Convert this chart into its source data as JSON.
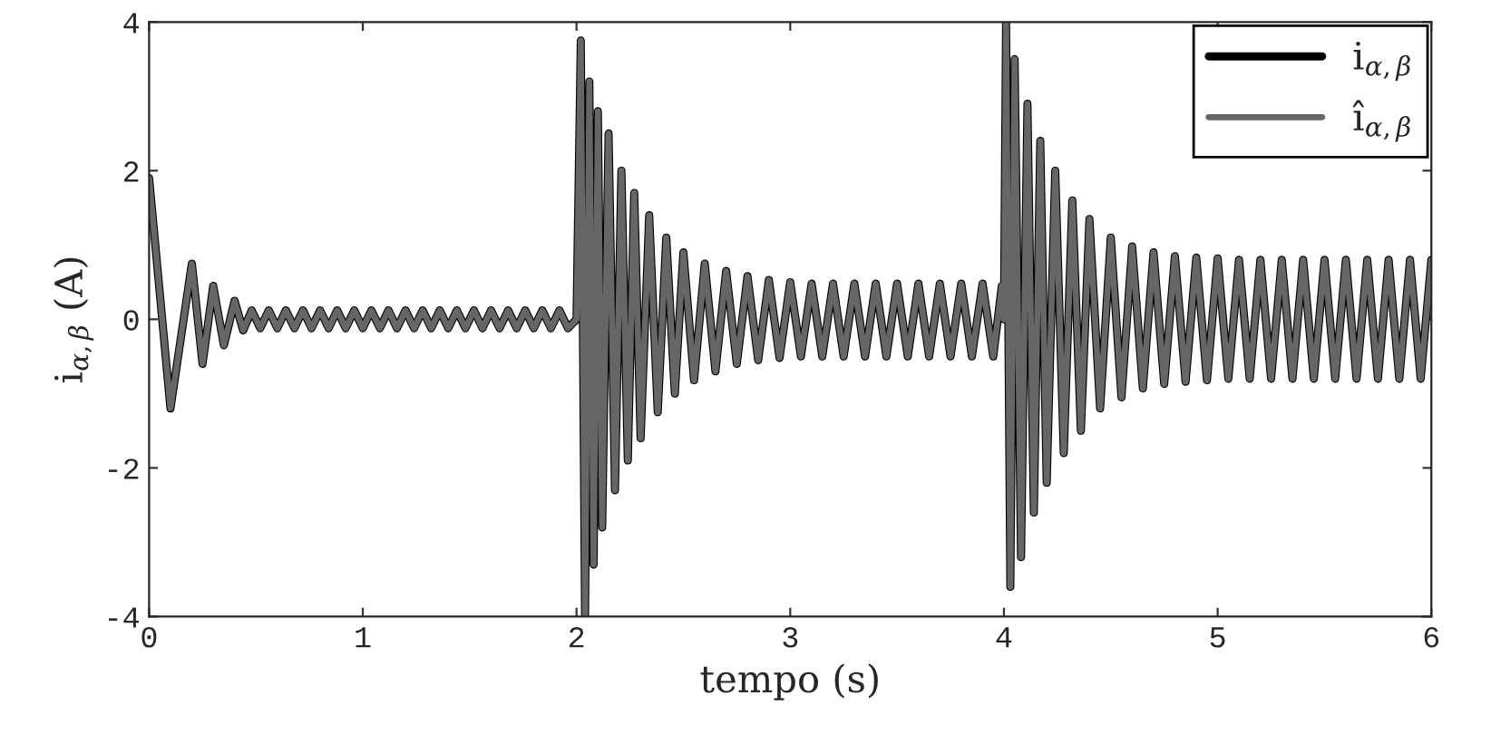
{
  "chart_data": {
    "type": "line",
    "xlabel": "tempo (s)",
    "ylabel": "i$_{α,β}$ (A)",
    "x": [
      0,
      0.1,
      0.2,
      0.25,
      0.3,
      0.35,
      0.4,
      0.44,
      0.48,
      0.52,
      0.56,
      0.6,
      0.64,
      0.68,
      0.72,
      0.76,
      0.8,
      0.84,
      0.88,
      0.92,
      0.96,
      1.0,
      1.04,
      1.08,
      1.12,
      1.16,
      1.2,
      1.24,
      1.28,
      1.32,
      1.36,
      1.4,
      1.44,
      1.48,
      1.52,
      1.56,
      1.6,
      1.64,
      1.68,
      1.72,
      1.76,
      1.8,
      1.84,
      1.88,
      1.92,
      1.96,
      2.0,
      2.02,
      2.04,
      2.06,
      2.08,
      2.1,
      2.12,
      2.15,
      2.18,
      2.21,
      2.24,
      2.27,
      2.3,
      2.34,
      2.38,
      2.42,
      2.46,
      2.5,
      2.55,
      2.6,
      2.65,
      2.7,
      2.75,
      2.8,
      2.85,
      2.9,
      2.95,
      3.0,
      3.05,
      3.1,
      3.15,
      3.2,
      3.25,
      3.3,
      3.35,
      3.4,
      3.45,
      3.5,
      3.55,
      3.6,
      3.65,
      3.7,
      3.75,
      3.8,
      3.85,
      3.9,
      3.95,
      3.99,
      4.0,
      4.01,
      4.03,
      4.05,
      4.08,
      4.11,
      4.14,
      4.17,
      4.2,
      4.24,
      4.28,
      4.32,
      4.36,
      4.4,
      4.45,
      4.5,
      4.55,
      4.6,
      4.65,
      4.7,
      4.75,
      4.8,
      4.85,
      4.9,
      4.95,
      5.0,
      5.05,
      5.1,
      5.15,
      5.2,
      5.25,
      5.3,
      5.35,
      5.4,
      5.45,
      5.5,
      5.55,
      5.6,
      5.65,
      5.7,
      5.75,
      5.8,
      5.85,
      5.9,
      5.95,
      6.0
    ],
    "series": [
      {
        "name": "i$_{α,β}$",
        "color": "#000000",
        "values": [
          1.9,
          -1.2,
          0.75,
          -0.6,
          0.45,
          -0.35,
          0.25,
          -0.15,
          0.12,
          -0.12,
          0.12,
          -0.12,
          0.12,
          -0.12,
          0.12,
          -0.12,
          0.12,
          -0.12,
          0.12,
          -0.12,
          0.12,
          -0.12,
          0.12,
          -0.12,
          0.12,
          -0.12,
          0.12,
          -0.12,
          0.12,
          -0.12,
          0.12,
          -0.12,
          0.12,
          -0.12,
          0.12,
          -0.12,
          0.12,
          -0.12,
          0.12,
          -0.12,
          0.12,
          -0.12,
          0.12,
          -0.12,
          0.12,
          -0.12,
          0,
          3.75,
          -4,
          3.2,
          -3.3,
          2.8,
          -2.8,
          2.5,
          -2.3,
          2.0,
          -1.9,
          1.7,
          -1.6,
          1.4,
          -1.25,
          1.1,
          -1.0,
          0.9,
          -0.82,
          0.75,
          -0.7,
          0.65,
          -0.6,
          0.58,
          -0.55,
          0.53,
          -0.52,
          0.5,
          -0.5,
          0.48,
          -0.5,
          0.48,
          -0.5,
          0.48,
          -0.5,
          0.48,
          -0.5,
          0.48,
          -0.5,
          0.48,
          -0.5,
          0.48,
          -0.5,
          0.48,
          -0.5,
          0.48,
          -0.5,
          0.45,
          0,
          4.0,
          -3.6,
          3.5,
          -3.2,
          2.9,
          -2.6,
          2.4,
          -2.2,
          2.0,
          -1.8,
          1.6,
          -1.5,
          1.35,
          -1.2,
          1.1,
          -1.05,
          0.98,
          -0.93,
          0.9,
          -0.87,
          0.85,
          -0.84,
          0.83,
          -0.82,
          0.82,
          -0.8,
          0.8,
          -0.8,
          0.8,
          -0.8,
          0.8,
          -0.8,
          0.8,
          -0.8,
          0.8,
          -0.8,
          0.8,
          -0.8,
          0.8,
          -0.8,
          0.8,
          -0.8,
          0.8,
          -0.8,
          0.8
        ]
      },
      {
        "name": "î$_{α,β}$",
        "color": "#666666",
        "values": [
          1.9,
          -1.2,
          0.75,
          -0.6,
          0.45,
          -0.35,
          0.25,
          -0.15,
          0.12,
          -0.12,
          0.12,
          -0.12,
          0.12,
          -0.12,
          0.12,
          -0.12,
          0.12,
          -0.12,
          0.12,
          -0.12,
          0.12,
          -0.12,
          0.12,
          -0.12,
          0.12,
          -0.12,
          0.12,
          -0.12,
          0.12,
          -0.12,
          0.12,
          -0.12,
          0.12,
          -0.12,
          0.12,
          -0.12,
          0.12,
          -0.12,
          0.12,
          -0.12,
          0.12,
          -0.12,
          0.12,
          -0.12,
          0.12,
          -0.12,
          0,
          3.75,
          -4,
          3.2,
          -3.3,
          2.8,
          -2.8,
          2.5,
          -2.3,
          2.0,
          -1.9,
          1.7,
          -1.6,
          1.4,
          -1.25,
          1.1,
          -1.0,
          0.9,
          -0.82,
          0.75,
          -0.7,
          0.65,
          -0.6,
          0.58,
          -0.55,
          0.53,
          -0.52,
          0.5,
          -0.5,
          0.48,
          -0.5,
          0.48,
          -0.5,
          0.48,
          -0.5,
          0.48,
          -0.5,
          0.48,
          -0.5,
          0.48,
          -0.5,
          0.48,
          -0.5,
          0.48,
          -0.5,
          0.48,
          -0.5,
          0.45,
          0,
          4.0,
          -3.6,
          3.5,
          -3.2,
          2.9,
          -2.6,
          2.4,
          -2.2,
          2.0,
          -1.8,
          1.6,
          -1.5,
          1.35,
          -1.2,
          1.1,
          -1.05,
          0.98,
          -0.93,
          0.9,
          -0.87,
          0.85,
          -0.84,
          0.83,
          -0.82,
          0.82,
          -0.8,
          0.8,
          -0.8,
          0.8,
          -0.8,
          0.8,
          -0.8,
          0.8,
          -0.8,
          0.8,
          -0.8,
          0.8,
          -0.8,
          0.8,
          -0.8,
          0.8,
          -0.8,
          0.8,
          -0.8,
          0.8
        ]
      }
    ],
    "xlim": [
      0,
      6
    ],
    "xticks": [
      0,
      1,
      2,
      3,
      4,
      5,
      6
    ],
    "ylim": [
      -4,
      4
    ],
    "yticks": [
      -4,
      -2,
      0,
      2,
      4
    ],
    "legend": "top right",
    "grid": false,
    "marker": "none",
    "line_style": "solid"
  }
}
